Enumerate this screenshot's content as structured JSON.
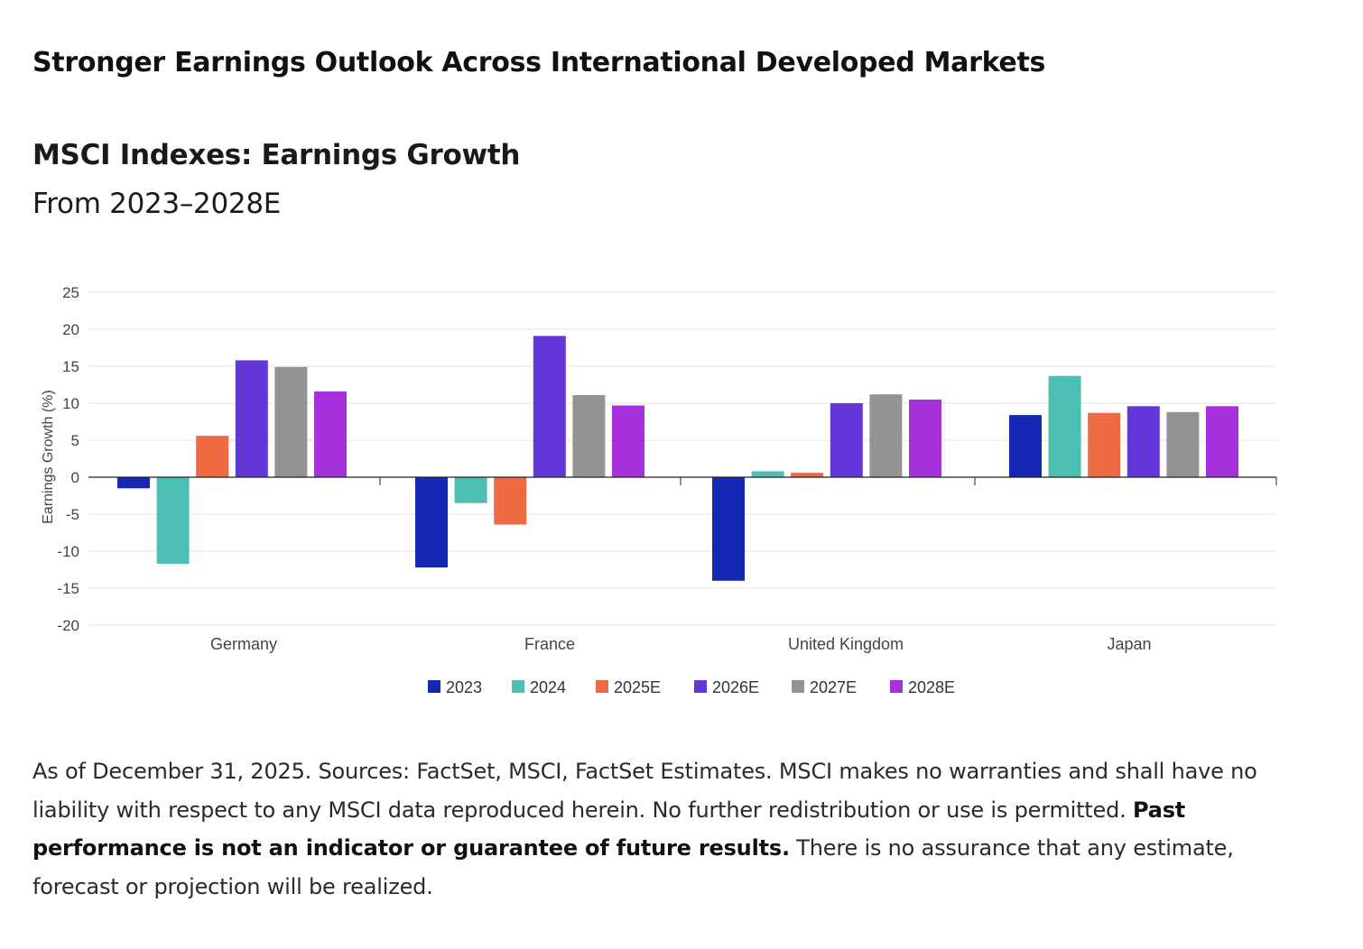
{
  "header": {
    "headline": "Stronger Earnings Outlook Across International Developed Markets"
  },
  "chart_data": {
    "type": "bar",
    "title": "MSCI Indexes: Earnings Growth",
    "subtitle": "From 2023–2028E",
    "xlabel": "",
    "ylabel": "Earnings Growth (%)",
    "ylim": [
      -20,
      25
    ],
    "yticks": [
      25,
      20,
      15,
      10,
      5,
      0,
      -5,
      -10,
      -15,
      -20
    ],
    "grid": true,
    "legend_position": "bottom-center",
    "categories": [
      "Germany",
      "France",
      "United Kingdom",
      "Japan"
    ],
    "series": [
      {
        "name": "2023",
        "color": "#1428b4",
        "values": [
          -1.5,
          -12.2,
          -14.0,
          8.4
        ]
      },
      {
        "name": "2024",
        "color": "#4dbfb4",
        "values": [
          -11.7,
          -3.5,
          0.8,
          13.7
        ]
      },
      {
        "name": "2025E",
        "color": "#ee6a43",
        "values": [
          5.6,
          -6.4,
          0.6,
          8.7
        ]
      },
      {
        "name": "2026E",
        "color": "#6236d9",
        "values": [
          15.8,
          19.1,
          10.0,
          9.6
        ]
      },
      {
        "name": "2027E",
        "color": "#939393",
        "values": [
          14.9,
          11.1,
          11.2,
          8.8
        ]
      },
      {
        "name": "2028E",
        "color": "#a730dc",
        "values": [
          11.6,
          9.7,
          10.5,
          9.6
        ]
      }
    ]
  },
  "footnote": {
    "text1": "As of December 31, 2025. Sources: FactSet, MSCI, FactSet Estimates. MSCI makes no warranties and shall have no liability with respect to any MSCI data reproduced herein. No further redistribution or use is permitted. ",
    "bold": "Past performance is not an indicator or guarantee of future results.",
    "text2": " There is no assurance that any estimate, forecast or projection will be realized."
  }
}
